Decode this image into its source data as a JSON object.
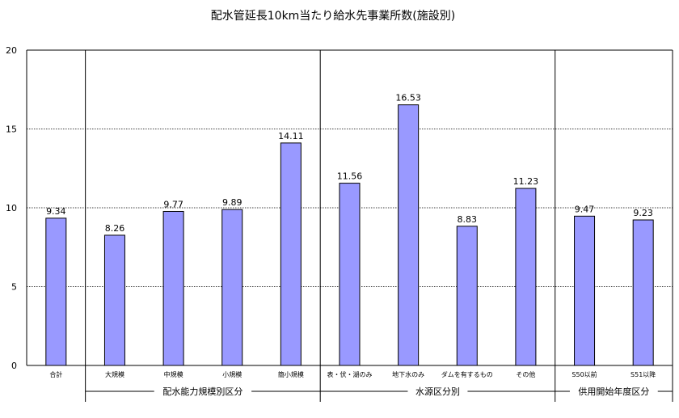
{
  "chart_data": {
    "type": "bar",
    "title": "配水管延長10km当たり給水先事業所数(施設別)",
    "xlabel": "",
    "ylabel": "",
    "ylim": [
      0,
      20
    ],
    "yticks": [
      0,
      5,
      10,
      15,
      20
    ],
    "grid": true,
    "grid_style": "dotted",
    "legend": "none",
    "bar_color": "#9999FF",
    "bar_edge_color": "#000000",
    "categories": [
      "合計",
      "大規模",
      "中規模",
      "小規模",
      "簡小規模",
      "表・伏・湖のみ",
      "地下水のみ",
      "ダムを有するもの",
      "その他",
      "S50以前",
      "S51以降"
    ],
    "values": [
      9.34,
      8.26,
      9.77,
      9.89,
      14.11,
      11.56,
      16.53,
      8.83,
      11.23,
      9.47,
      9.23
    ],
    "data_labels": [
      "9.34",
      "8.26",
      "9.77",
      "9.89",
      "14.11",
      "11.56",
      "16.53",
      "8.83",
      "11.23",
      "9.47",
      "9.23"
    ],
    "groups": [
      {
        "label": "配水能力規模別区分",
        "start": 1,
        "end": 4
      },
      {
        "label": "水源区分別",
        "start": 5,
        "end": 8
      },
      {
        "label": "供用開始年度区分",
        "start": 9,
        "end": 10
      }
    ]
  }
}
